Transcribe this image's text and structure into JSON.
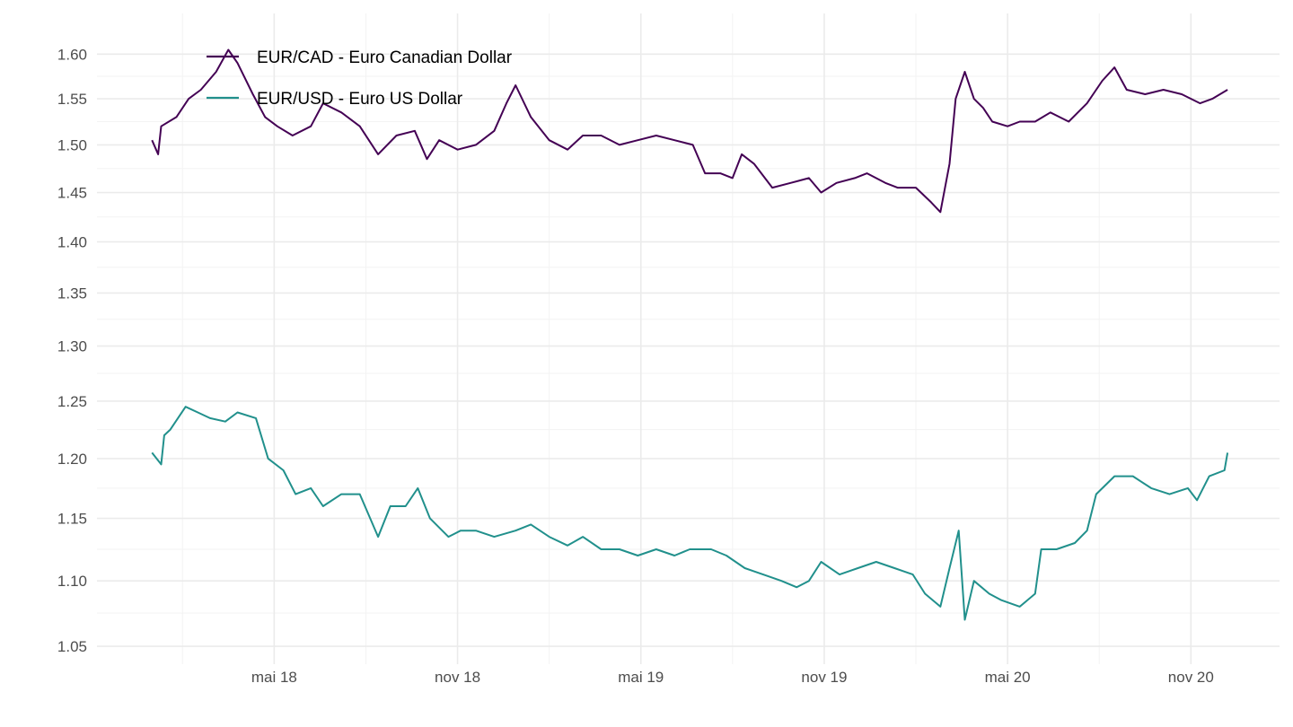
{
  "chart_data": {
    "type": "line",
    "title": "",
    "xlabel": "",
    "ylabel": "",
    "x_unit": "months since January 2018",
    "y_scale": "log",
    "xlim": [
      -1.8,
      36.9
    ],
    "ylim": [
      1.0367,
      1.647
    ],
    "grid": true,
    "legend_position": "top-left (inside)",
    "x_ticks": [
      {
        "value": 4,
        "label": "mai 18"
      },
      {
        "value": 10,
        "label": "nov 18"
      },
      {
        "value": 16,
        "label": "mai 19"
      },
      {
        "value": 22,
        "label": "nov 19"
      },
      {
        "value": 28,
        "label": "mai 20"
      },
      {
        "value": 34,
        "label": "nov 20"
      }
    ],
    "x_minor_ticks": [
      1,
      7,
      13,
      19,
      25,
      31
    ],
    "y_ticks": [
      {
        "value": 1.05,
        "label": "1.05"
      },
      {
        "value": 1.1,
        "label": "1.10"
      },
      {
        "value": 1.15,
        "label": "1.15"
      },
      {
        "value": 1.2,
        "label": "1.20"
      },
      {
        "value": 1.25,
        "label": "1.25"
      },
      {
        "value": 1.3,
        "label": "1.30"
      },
      {
        "value": 1.35,
        "label": "1.35"
      },
      {
        "value": 1.4,
        "label": "1.40"
      },
      {
        "value": 1.45,
        "label": "1.45"
      },
      {
        "value": 1.5,
        "label": "1.50"
      },
      {
        "value": 1.55,
        "label": "1.55"
      },
      {
        "value": 1.6,
        "label": "1.60"
      }
    ],
    "series": [
      {
        "name": "EUR/CAD - Euro Canadian Dollar",
        "color": "#440154",
        "x": [
          0,
          0.2,
          0.3,
          0.8,
          1.2,
          1.6,
          2.1,
          2.5,
          2.8,
          3.3,
          3.7,
          4.1,
          4.6,
          5.2,
          5.6,
          6.2,
          6.8,
          7.4,
          8.0,
          8.6,
          9.0,
          9.4,
          10.0,
          10.6,
          11.2,
          11.6,
          11.9,
          12.4,
          13.0,
          13.6,
          14.1,
          14.7,
          15.3,
          15.9,
          16.5,
          17.1,
          17.7,
          18.1,
          18.6,
          19.0,
          19.3,
          19.7,
          20.3,
          20.9,
          21.5,
          21.9,
          22.4,
          23.0,
          23.4,
          24.0,
          24.4,
          25.0,
          25.5,
          25.8,
          26.1,
          26.3,
          26.6,
          26.9,
          27.2,
          27.5,
          28.0,
          28.4,
          28.9,
          29.4,
          30.0,
          30.6,
          31.1,
          31.5,
          31.9,
          32.5,
          33.1,
          33.7,
          34.3,
          34.7,
          35.2
        ],
        "values": [
          1.505,
          1.49,
          1.52,
          1.53,
          1.55,
          1.56,
          1.58,
          1.605,
          1.59,
          1.555,
          1.53,
          1.52,
          1.51,
          1.52,
          1.545,
          1.535,
          1.52,
          1.49,
          1.51,
          1.515,
          1.485,
          1.505,
          1.495,
          1.5,
          1.515,
          1.545,
          1.565,
          1.53,
          1.505,
          1.495,
          1.51,
          1.51,
          1.5,
          1.505,
          1.51,
          1.505,
          1.5,
          1.47,
          1.47,
          1.465,
          1.49,
          1.48,
          1.455,
          1.46,
          1.465,
          1.45,
          1.46,
          1.465,
          1.47,
          1.46,
          1.455,
          1.455,
          1.44,
          1.43,
          1.48,
          1.55,
          1.58,
          1.55,
          1.54,
          1.525,
          1.52,
          1.525,
          1.525,
          1.535,
          1.525,
          1.545,
          1.57,
          1.585,
          1.56,
          1.555,
          1.56,
          1.555,
          1.545,
          1.55,
          1.56
        ]
      },
      {
        "name": "EUR/USD - Euro US Dollar",
        "color": "#21908C",
        "x": [
          0,
          0.3,
          0.4,
          0.6,
          1.1,
          1.5,
          1.9,
          2.4,
          2.8,
          3.4,
          3.8,
          4.3,
          4.7,
          5.2,
          5.6,
          6.2,
          6.8,
          7.4,
          7.8,
          8.3,
          8.7,
          9.1,
          9.7,
          10.1,
          10.6,
          11.2,
          11.9,
          12.4,
          13.0,
          13.6,
          14.1,
          14.7,
          15.3,
          15.9,
          16.5,
          17.1,
          17.6,
          18.3,
          18.8,
          19.4,
          20.0,
          20.6,
          21.1,
          21.5,
          21.9,
          22.5,
          23.1,
          23.7,
          24.3,
          24.9,
          25.3,
          25.8,
          26.1,
          26.4,
          26.6,
          26.9,
          27.4,
          27.8,
          28.4,
          28.9,
          29.1,
          29.6,
          30.2,
          30.6,
          30.9,
          31.5,
          32.1,
          32.7,
          33.3,
          33.9,
          34.2,
          34.6,
          35.1,
          35.2
        ],
        "values": [
          1.205,
          1.195,
          1.22,
          1.225,
          1.245,
          1.24,
          1.235,
          1.232,
          1.24,
          1.235,
          1.2,
          1.19,
          1.17,
          1.175,
          1.16,
          1.17,
          1.17,
          1.135,
          1.16,
          1.16,
          1.175,
          1.15,
          1.135,
          1.14,
          1.14,
          1.135,
          1.14,
          1.145,
          1.135,
          1.128,
          1.135,
          1.125,
          1.125,
          1.12,
          1.125,
          1.12,
          1.125,
          1.125,
          1.12,
          1.11,
          1.105,
          1.1,
          1.095,
          1.1,
          1.115,
          1.105,
          1.11,
          1.115,
          1.11,
          1.105,
          1.09,
          1.08,
          1.11,
          1.14,
          1.07,
          1.1,
          1.09,
          1.085,
          1.08,
          1.09,
          1.125,
          1.125,
          1.13,
          1.14,
          1.17,
          1.185,
          1.185,
          1.175,
          1.17,
          1.175,
          1.165,
          1.185,
          1.19,
          1.205
        ]
      }
    ]
  }
}
